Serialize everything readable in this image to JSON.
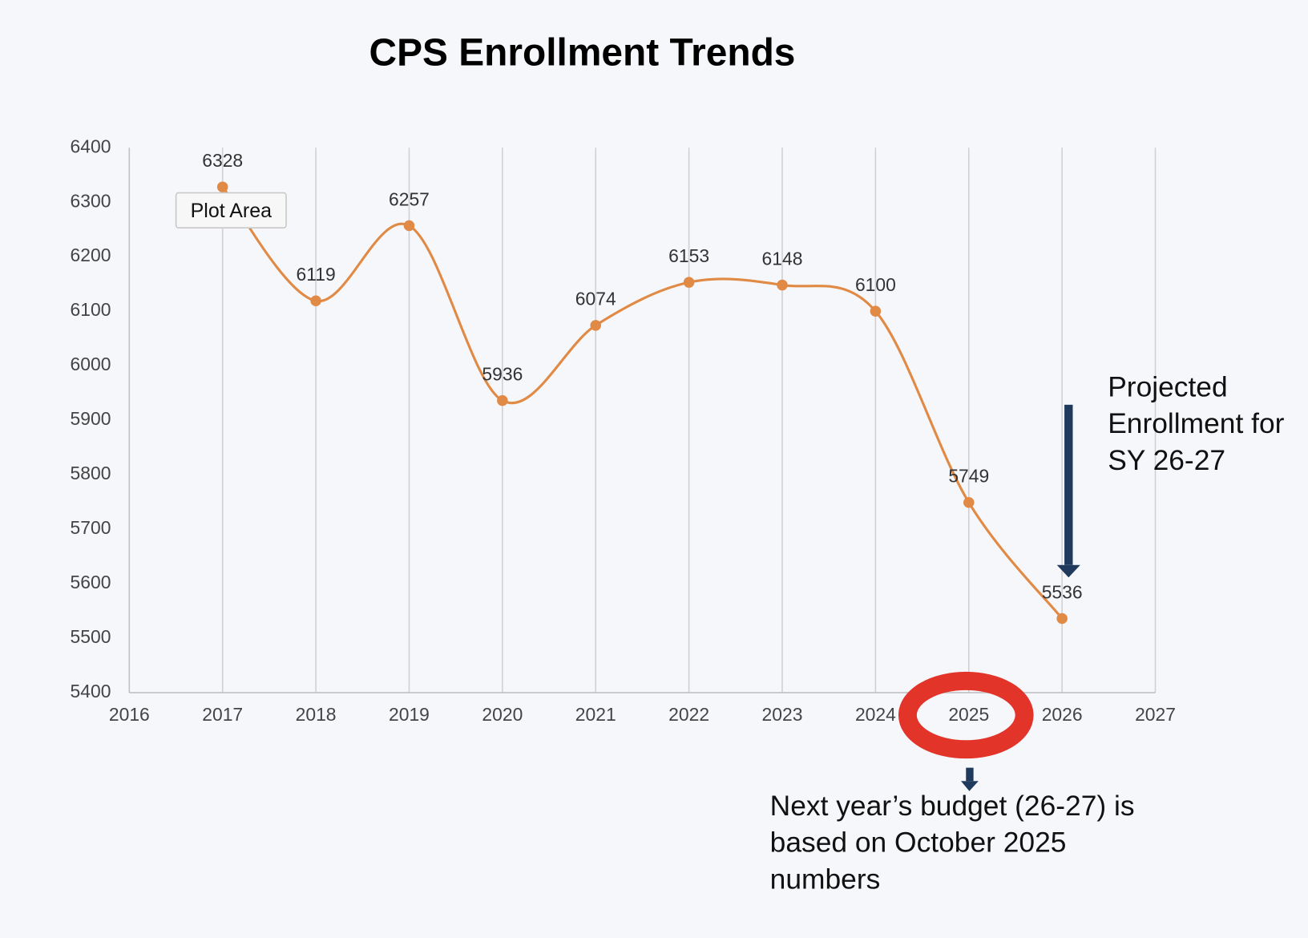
{
  "chart_data": {
    "type": "line",
    "title": "CPS Enrollment Trends",
    "x": [
      2017,
      2018,
      2019,
      2020,
      2021,
      2022,
      2023,
      2024,
      2025,
      2026
    ],
    "values": [
      6328,
      6119,
      6257,
      5936,
      6074,
      6153,
      6148,
      6100,
      5749,
      5536
    ],
    "color": "#e08a45",
    "xlim": [
      2016,
      2027
    ],
    "xticks": [
      2016,
      2017,
      2018,
      2019,
      2020,
      2021,
      2022,
      2023,
      2024,
      2025,
      2026,
      2027
    ],
    "ylim": [
      5400,
      6400
    ],
    "yticks": [
      5400,
      5500,
      5600,
      5700,
      5800,
      5900,
      6000,
      6100,
      6200,
      6300,
      6400
    ],
    "grid": true,
    "tooltip": "Plot Area",
    "annotations": [
      {
        "lines": [
          "Projected",
          "Enrollment for",
          "SY 26-27"
        ]
      },
      {
        "lines": [
          "Next year’s budget (26-27) is",
          "based on October 2025",
          "numbers"
        ]
      }
    ]
  }
}
